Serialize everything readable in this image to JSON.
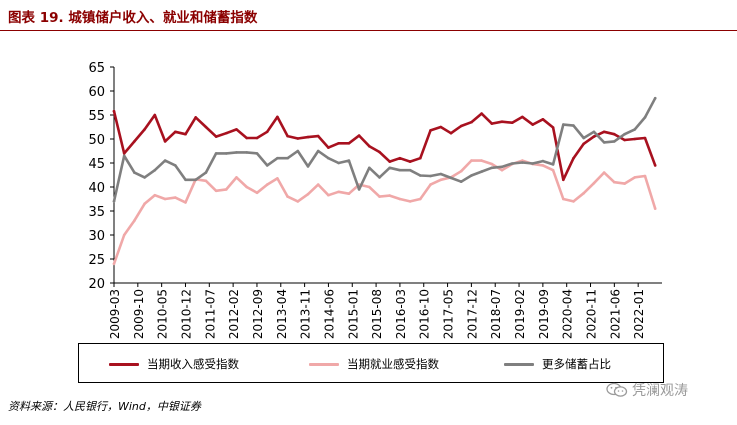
{
  "header": {
    "title": "图表 19. 城镇储户收入、就业和储蓄指数"
  },
  "footer": {
    "source": "资料来源：人民银行，Wind，中银证券"
  },
  "watermark": {
    "text": "凭澜观涛",
    "icon": "wechat-icon"
  },
  "chart_data": {
    "type": "line",
    "ylim": [
      20,
      65
    ],
    "yticks": [
      20,
      25,
      30,
      35,
      40,
      45,
      50,
      55,
      60,
      65
    ],
    "x_tick_labels": [
      "2009-03",
      "2009-10",
      "2010-05",
      "2010-12",
      "2011-07",
      "2012-02",
      "2012-09",
      "2013-04",
      "2013-11",
      "2014-06",
      "2015-01",
      "2015-08",
      "2016-03",
      "2016-10",
      "2017-05",
      "2017-12",
      "2018-07",
      "2019-02",
      "2019-09",
      "2020-04",
      "2020-11",
      "2021-06",
      "2022-01"
    ],
    "x": [
      "2009-03",
      "2009-06",
      "2009-09",
      "2009-12",
      "2010-03",
      "2010-06",
      "2010-09",
      "2010-12",
      "2011-03",
      "2011-06",
      "2011-09",
      "2011-12",
      "2012-03",
      "2012-06",
      "2012-09",
      "2012-12",
      "2013-03",
      "2013-06",
      "2013-09",
      "2013-12",
      "2014-03",
      "2014-06",
      "2014-09",
      "2014-12",
      "2015-03",
      "2015-06",
      "2015-09",
      "2015-12",
      "2016-03",
      "2016-06",
      "2016-09",
      "2016-12",
      "2017-03",
      "2017-06",
      "2017-09",
      "2017-12",
      "2018-03",
      "2018-06",
      "2018-09",
      "2018-12",
      "2019-03",
      "2019-06",
      "2019-09",
      "2019-12",
      "2020-03",
      "2020-06",
      "2020-09",
      "2020-12",
      "2021-03",
      "2021-06",
      "2021-09",
      "2021-12",
      "2022-03",
      "2022-06"
    ],
    "series": [
      {
        "name": "当期收入感受指数",
        "color": "#A8111F",
        "values": [
          55.8,
          47.0,
          49.5,
          52.0,
          55.0,
          49.5,
          51.5,
          51.0,
          54.5,
          52.5,
          50.5,
          51.2,
          52.0,
          50.2,
          50.2,
          51.5,
          54.6,
          50.6,
          50.1,
          50.4,
          50.6,
          48.2,
          49.1,
          49.1,
          50.7,
          48.5,
          47.3,
          45.3,
          46.0,
          45.3,
          46.0,
          51.8,
          52.5,
          51.2,
          52.7,
          53.5,
          55.3,
          53.2,
          53.6,
          53.4,
          54.6,
          53.0,
          54.1,
          52.4,
          41.5,
          46.0,
          49.0,
          50.5,
          51.5,
          51.0,
          49.8,
          50.0,
          50.2,
          44.5
        ]
      },
      {
        "name": "当期就业感受指数",
        "color": "#F0A8A8",
        "values": [
          24.0,
          30.0,
          33.0,
          36.5,
          38.3,
          37.5,
          37.8,
          36.8,
          41.6,
          41.3,
          39.2,
          39.5,
          42.0,
          40.0,
          38.8,
          40.5,
          41.8,
          38.0,
          37.0,
          38.5,
          40.5,
          38.3,
          39.0,
          38.6,
          40.5,
          40.0,
          38.0,
          38.2,
          37.5,
          37.0,
          37.5,
          40.5,
          41.5,
          42.0,
          43.3,
          45.5,
          45.5,
          44.8,
          43.5,
          44.8,
          45.5,
          44.8,
          44.5,
          43.5,
          37.5,
          37.0,
          38.7,
          40.8,
          43.0,
          41.0,
          40.7,
          42.0,
          42.3,
          35.5
        ]
      },
      {
        "name": "更多储蓄占比",
        "color": "#7F7F7F",
        "values": [
          37.0,
          46.5,
          43.0,
          42.0,
          43.5,
          45.5,
          44.5,
          41.5,
          41.5,
          43.0,
          47.0,
          47.0,
          47.2,
          47.2,
          47.0,
          44.5,
          46.0,
          46.0,
          47.5,
          44.3,
          47.5,
          46.0,
          45.0,
          45.5,
          39.5,
          44.0,
          42.0,
          44.0,
          43.5,
          43.5,
          42.4,
          42.3,
          42.7,
          41.9,
          41.1,
          42.4,
          43.2,
          44.0,
          44.2,
          44.9,
          45.1,
          44.9,
          45.4,
          44.7,
          53.0,
          52.8,
          50.2,
          51.5,
          49.3,
          49.5,
          51.0,
          52.0,
          54.5,
          58.5
        ]
      }
    ]
  }
}
